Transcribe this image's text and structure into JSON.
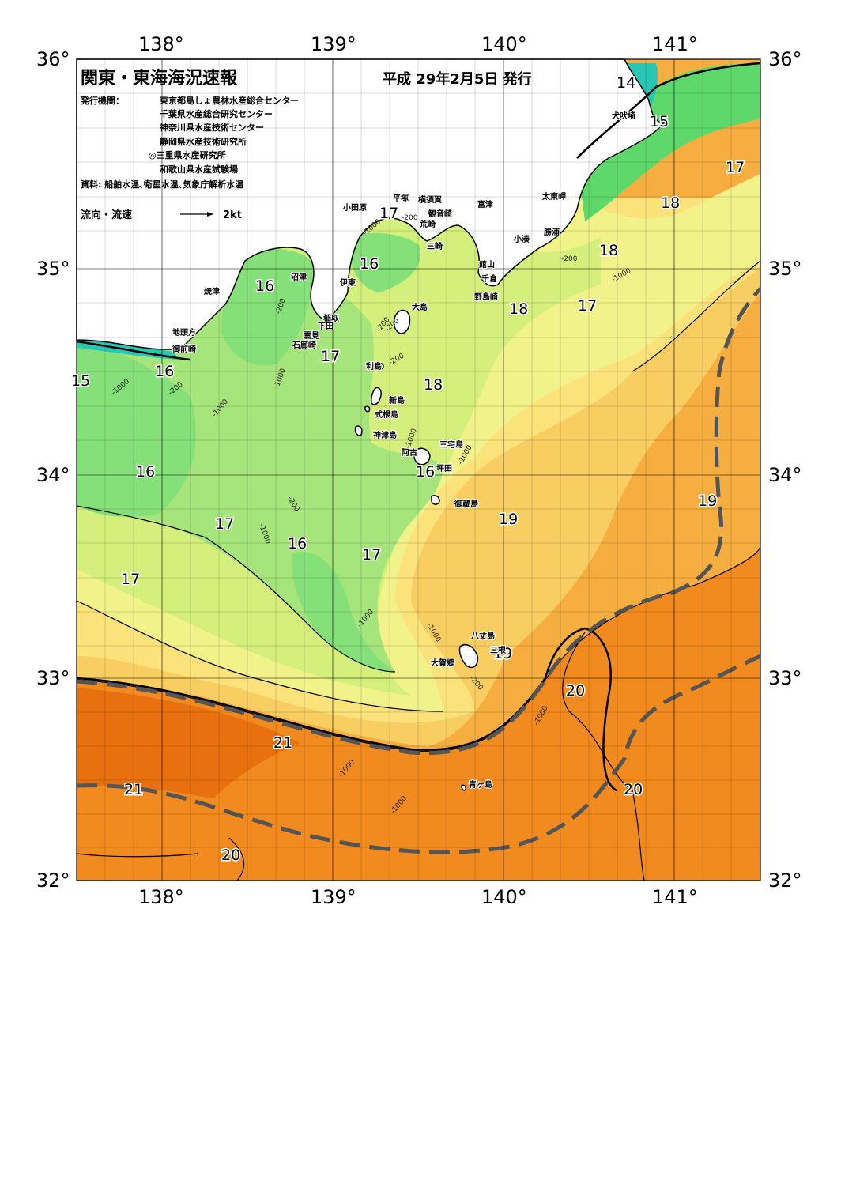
{
  "header": {
    "title": "関東・東海海況速報",
    "date": "平成 29年2月5日 発行",
    "issuer_label": "発行機関：",
    "issuers": [
      "東京都島しょ農林水産総合センター",
      "千葉県水産総合研究センター",
      "神奈川県水産技術センター",
      "静岡県水産技術研究所",
      "◎三重県水産研究所",
      "和歌山県水産試験場"
    ],
    "sources": "資料: 船舶水温､衛星水温､気象庁解析水温",
    "legend_label": "流向・流速",
    "legend_scale": "2kt"
  },
  "axes": {
    "lon_top": [
      "138°",
      "139°",
      "140°",
      "141°"
    ],
    "lon_bottom": [
      "138°",
      "139°",
      "140°",
      "141°"
    ],
    "lat_left": [
      "36°",
      "35°",
      "34°",
      "33°",
      "32°"
    ],
    "lat_right": [
      "36°",
      "35°",
      "34°",
      "33°",
      "32°"
    ]
  },
  "isotherm_labels": [
    "14",
    "15",
    "17",
    "18",
    "18",
    "17",
    "16",
    "16",
    "17",
    "16",
    "18",
    "16",
    "16",
    "17",
    "16",
    "17",
    "19",
    "19",
    "17",
    "18",
    "19",
    "20",
    "21",
    "21",
    "20",
    "20",
    "17",
    "15"
  ],
  "depth_labels": [
    "-200",
    "-1000",
    "-200",
    "-1000",
    "-1000",
    "-200",
    "-200",
    "-1000",
    "-200",
    "-1000",
    "-200",
    "-1000",
    "-1000",
    "-1000",
    "-1000",
    "-200",
    "-1000",
    "-1000",
    "-1000",
    "-200",
    "-1000",
    "-200"
  ],
  "places": {
    "inubozaki": "犬吠埼",
    "taitomisaki": "太東岬",
    "katsuura": "勝浦",
    "kominato": "小湊",
    "tateyama": "館山",
    "chikura": "千倉",
    "nojimazaki": "野島崎",
    "futtsu": "富津",
    "kannonzaki": "観音崎",
    "yokosuka": "横須賀",
    "hiratsuka": "平塚",
    "odawara": "小田原",
    "arasaki": "荒崎",
    "misaki": "三崎",
    "ito": "伊東",
    "numazu": "沼津",
    "yaizu": "焼津",
    "inatori": "稲取",
    "shimoda": "下田",
    "kumomi": "雲見",
    "irozaki": "石廊崎",
    "jitogata": "地頭方",
    "omaezaki": "御前崎",
    "oshima": "大島",
    "toshima": "利島",
    "niijima": "新島",
    "shikinejima": "式根島",
    "kozushima": "神津島",
    "miyakejima": "三宅島",
    "ako": "阿古",
    "tsubota": "坪田",
    "mikurajima": "御蔵島",
    "hachijojima": "八丈島",
    "mitsune": "三根",
    "okago": "大賀郷",
    "aogashima": "青ヶ島"
  },
  "colors": {
    "t14": "#29c6b4",
    "t15": "#5fd86b",
    "t16": "#86e07a",
    "t165": "#a6e47c",
    "t17": "#d5ef7c",
    "t175": "#f2f28a",
    "t18": "#fbe27a",
    "t185": "#f8cd62",
    "t19": "#f6ae40",
    "t195": "#f29a32",
    "t20": "#f18a1f",
    "t21": "#e8700f",
    "land": "#ffffff",
    "kuroshio": "#555555"
  }
}
